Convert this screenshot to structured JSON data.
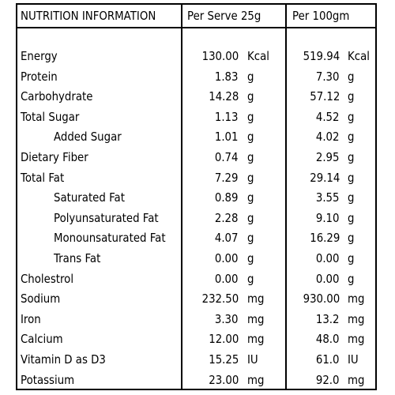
{
  "header": {
    "title": "NUTRITION INFORMATION",
    "col_serve": "Per Serve 25g",
    "col_100": "Per 100gm"
  },
  "rows": [
    {
      "name": "Energy",
      "indent": false,
      "serve_value": "130.00",
      "serve_unit": "Kcal",
      "per100_value": "519.94",
      "per100_unit": "Kcal"
    },
    {
      "name": "Protein",
      "indent": false,
      "serve_value": "1.83",
      "serve_unit": "g",
      "per100_value": "7.30",
      "per100_unit": "g"
    },
    {
      "name": "Carbohydrate",
      "indent": false,
      "serve_value": "14.28",
      "serve_unit": "g",
      "per100_value": "57.12",
      "per100_unit": "g"
    },
    {
      "name": "Total Sugar",
      "indent": false,
      "serve_value": "1.13",
      "serve_unit": "g",
      "per100_value": "4.52",
      "per100_unit": "g"
    },
    {
      "name": "Added Sugar",
      "indent": true,
      "serve_value": "1.01",
      "serve_unit": "g",
      "per100_value": "4.02",
      "per100_unit": "g"
    },
    {
      "name": "Dietary Fiber",
      "indent": false,
      "serve_value": "0.74",
      "serve_unit": "g",
      "per100_value": "2.95",
      "per100_unit": "g"
    },
    {
      "name": "Total Fat",
      "indent": false,
      "serve_value": "7.29",
      "serve_unit": "g",
      "per100_value": "29.14",
      "per100_unit": "g"
    },
    {
      "name": "Saturated Fat",
      "indent": true,
      "serve_value": "0.89",
      "serve_unit": "g",
      "per100_value": "3.55",
      "per100_unit": "g"
    },
    {
      "name": "Polyunsaturated Fat",
      "indent": true,
      "serve_value": "2.28",
      "serve_unit": "g",
      "per100_value": "9.10",
      "per100_unit": "g"
    },
    {
      "name": "Monounsaturated Fat",
      "indent": true,
      "serve_value": "4.07",
      "serve_unit": "g",
      "per100_value": "16.29",
      "per100_unit": "g"
    },
    {
      "name": "Trans Fat",
      "indent": true,
      "serve_value": "0.00",
      "serve_unit": "g",
      "per100_value": "0.00",
      "per100_unit": "g"
    },
    {
      "name": "Cholestrol",
      "indent": false,
      "serve_value": "0.00",
      "serve_unit": "g",
      "per100_value": "0.00",
      "per100_unit": "g"
    },
    {
      "name": "Sodium",
      "indent": false,
      "serve_value": "232.50",
      "serve_unit": "mg",
      "per100_value": "930.00",
      "per100_unit": "mg"
    },
    {
      "name": "Iron",
      "indent": false,
      "serve_value": "3.30",
      "serve_unit": "mg",
      "per100_value": "13.2",
      "per100_unit": "mg"
    },
    {
      "name": "Calcium",
      "indent": false,
      "serve_value": "12.00",
      "serve_unit": "mg",
      "per100_value": "48.0",
      "per100_unit": "mg"
    },
    {
      "name": "Vitamin D as D3",
      "indent": false,
      "serve_value": "15.25",
      "serve_unit": "IU",
      "per100_value": "61.0",
      "per100_unit": "IU"
    },
    {
      "name": "Potassium",
      "indent": false,
      "serve_value": "23.00",
      "serve_unit": "mg",
      "per100_value": "92.0",
      "per100_unit": "mg"
    }
  ]
}
